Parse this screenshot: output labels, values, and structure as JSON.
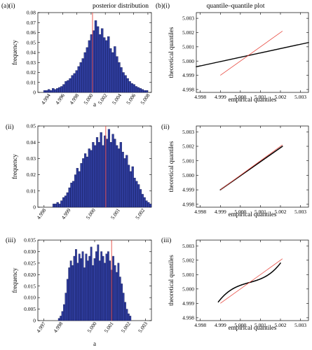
{
  "column_titles": {
    "a": "posterior distribution",
    "b": "quantile–quantile plot"
  },
  "panel_labels": {
    "a": "(a)(i)",
    "b": "(b)(i)",
    "ii": "(ii)",
    "iii": "(iii)"
  },
  "colors": {
    "bars": "#2f3d9e",
    "bar_edge": "#0a0f45",
    "ref_line": "#e8483f",
    "points": "#000000"
  },
  "chart_data": [
    {
      "type": "bar",
      "id": "hist-i",
      "xlabel": "a",
      "ylabel": "frequency",
      "xlim": [
        4.9925,
        5.0085
      ],
      "ylim": [
        0,
        0.08
      ],
      "xticks": [
        4.994,
        4.996,
        4.998,
        5.0,
        5.002,
        5.004,
        5.006,
        5.008
      ],
      "xtick_labels": [
        "4.994",
        "4.996",
        "4.998",
        "5.000",
        "5.002",
        "5.004",
        "5.006",
        "5.008"
      ],
      "yticks": [
        0,
        0.01,
        0.02,
        0.03,
        0.04,
        0.05,
        0.06,
        0.07,
        0.08
      ],
      "ytick_labels": [
        "0",
        "0.01",
        "0.02",
        "0.03",
        "0.04",
        "0.05",
        "0.06",
        "0.07",
        "0.08"
      ],
      "bin_start": 4.9933,
      "bin_width": 0.0003,
      "values": [
        0.002,
        0.002,
        0.003,
        0.002,
        0.004,
        0.003,
        0.004,
        0.005,
        0.006,
        0.008,
        0.011,
        0.012,
        0.014,
        0.017,
        0.019,
        0.022,
        0.026,
        0.03,
        0.034,
        0.04,
        0.045,
        0.052,
        0.058,
        0.062,
        0.072,
        0.066,
        0.058,
        0.064,
        0.055,
        0.052,
        0.056,
        0.044,
        0.04,
        0.046,
        0.036,
        0.03,
        0.025,
        0.02,
        0.017,
        0.014,
        0.011,
        0.009,
        0.008,
        0.006,
        0.005,
        0.004,
        0.003,
        0.002,
        0.002
      ],
      "ref_line_x": 5.0002
    },
    {
      "type": "scatter",
      "id": "qq-i",
      "xlabel": "empirical quantiles",
      "ylabel": "theoretical quantiles",
      "xlim": [
        4.9978,
        5.0034
      ],
      "ylim": [
        4.9978,
        5.0034
      ],
      "xticks": [
        4.998,
        4.999,
        5.0,
        5.001,
        5.002,
        5.003
      ],
      "xtick_labels": [
        "4.998",
        "4.999",
        "5.000",
        "5.001",
        "5.002",
        "5.003"
      ],
      "yticks": [
        4.998,
        4.999,
        5.0,
        5.001,
        5.002,
        5.003
      ],
      "yticks_labels_note": "",
      "ytick_labels": [
        "4.998",
        "4.999",
        "5.000",
        "5.001",
        "5.002",
        "5.003"
      ],
      "points_from": [
        4.9978,
        4.9996
      ],
      "points_to": [
        5.0034,
        5.0013
      ],
      "ref_line": [
        [
          4.999,
          4.999
        ],
        [
          5.0021,
          5.0021
        ]
      ]
    },
    {
      "type": "bar",
      "id": "hist-ii",
      "xlabel": "",
      "ylabel": "frequency",
      "xlim": [
        4.99775,
        5.00235
      ],
      "ylim": [
        0,
        0.05
      ],
      "xticks": [
        4.998,
        4.999,
        5.0,
        5.001,
        5.002
      ],
      "xtick_labels": [
        "4.998",
        "4.999",
        "5.000",
        "5.001",
        "5.002"
      ],
      "yticks": [
        0,
        0.01,
        0.02,
        0.03,
        0.04,
        0.05
      ],
      "ytick_labels": [
        "0",
        "0.01",
        "0.02",
        "0.03",
        "0.04",
        "0.05"
      ],
      "bin_start": 4.99835,
      "bin_width": 8e-05,
      "values": [
        0.002,
        0.002,
        0.003,
        0.002,
        0.004,
        0.006,
        0.007,
        0.009,
        0.012,
        0.015,
        0.016,
        0.02,
        0.024,
        0.022,
        0.027,
        0.03,
        0.033,
        0.031,
        0.036,
        0.035,
        0.04,
        0.038,
        0.043,
        0.04,
        0.046,
        0.038,
        0.044,
        0.042,
        0.048,
        0.04,
        0.045,
        0.042,
        0.038,
        0.036,
        0.04,
        0.034,
        0.03,
        0.032,
        0.026,
        0.022,
        0.025,
        0.018,
        0.016,
        0.014,
        0.011,
        0.008,
        0.006,
        0.004,
        0.003,
        0.002
      ],
      "ref_line_x": 5.0005
    },
    {
      "type": "scatter",
      "id": "qq-ii",
      "xlabel": "empirical quantiles",
      "ylabel": "theoretical quantiles",
      "xlim": [
        4.9978,
        5.0034
      ],
      "ylim": [
        4.9978,
        5.0034
      ],
      "xticks": [
        4.998,
        4.999,
        5.0,
        5.001,
        5.002,
        5.003
      ],
      "xtick_labels": [
        "4.998",
        "4.999",
        "5.000",
        "5.001",
        "5.002",
        "5.003"
      ],
      "yticks": [
        4.998,
        4.999,
        5.0,
        5.001,
        5.002,
        5.003
      ],
      "ytick_labels": [
        "4.998",
        "4.999",
        "5.000",
        "5.001",
        "5.002",
        "5.003"
      ],
      "points_from": [
        4.999,
        4.999
      ],
      "points_to": [
        5.0021,
        5.002
      ],
      "ref_line": [
        [
          4.999,
          4.999
        ],
        [
          5.0021,
          5.0021
        ]
      ]
    },
    {
      "type": "bar",
      "id": "hist-iii",
      "xlabel": "a",
      "ylabel": "frequency",
      "xlim": [
        4.99665,
        5.00335
      ],
      "ylim": [
        0,
        0.035
      ],
      "xticks": [
        4.997,
        4.998,
        5.0,
        5.001,
        5.002,
        5.003
      ],
      "xtick_labels": [
        "4.997",
        "4.998",
        "5.000",
        "5.001",
        "5.002",
        "5.003"
      ],
      "yticks": [
        0,
        0.005,
        0.01,
        0.015,
        0.02,
        0.025,
        0.03,
        0.035
      ],
      "ytick_labels": [
        "0",
        "0.005",
        "0.010",
        "0.015",
        "0.020",
        "0.025",
        "0.030",
        "0.035"
      ],
      "bin_start": 4.99785,
      "bin_width": 0.0001,
      "values": [
        0.001,
        0.002,
        0.004,
        0.007,
        0.012,
        0.018,
        0.023,
        0.026,
        0.024,
        0.028,
        0.031,
        0.025,
        0.029,
        0.027,
        0.03,
        0.023,
        0.029,
        0.026,
        0.028,
        0.032,
        0.024,
        0.027,
        0.03,
        0.033,
        0.026,
        0.03,
        0.028,
        0.025,
        0.029,
        0.03,
        0.026,
        0.022,
        0.028,
        0.024,
        0.021,
        0.025,
        0.019,
        0.016,
        0.012,
        0.008,
        0.005,
        0.003,
        0.002
      ],
      "ref_line_x": 5.001
    },
    {
      "type": "scatter",
      "id": "qq-iii",
      "xlabel": "empirical quantiles",
      "ylabel": "theoretical quantiles",
      "xlim": [
        4.9978,
        5.0034
      ],
      "ylim": [
        4.9978,
        5.0034
      ],
      "xticks": [
        4.998,
        4.999,
        5.0,
        5.001,
        5.002,
        5.003
      ],
      "xtick_labels": [
        "4.998",
        "4.999",
        "5.000",
        "5.001",
        "5.002",
        "5.003"
      ],
      "yticks": [
        4.998,
        4.999,
        5.0,
        5.001,
        5.002,
        5.003
      ],
      "ytick_labels": [
        "4.998",
        "4.999",
        "5.000",
        "5.001",
        "5.002",
        "5.003"
      ],
      "points_from": [
        4.9989,
        4.9991
      ],
      "points_to": [
        5.002,
        5.0018
      ],
      "ref_line": [
        [
          4.999,
          4.999
        ],
        [
          5.0021,
          5.0021
        ]
      ]
    }
  ]
}
